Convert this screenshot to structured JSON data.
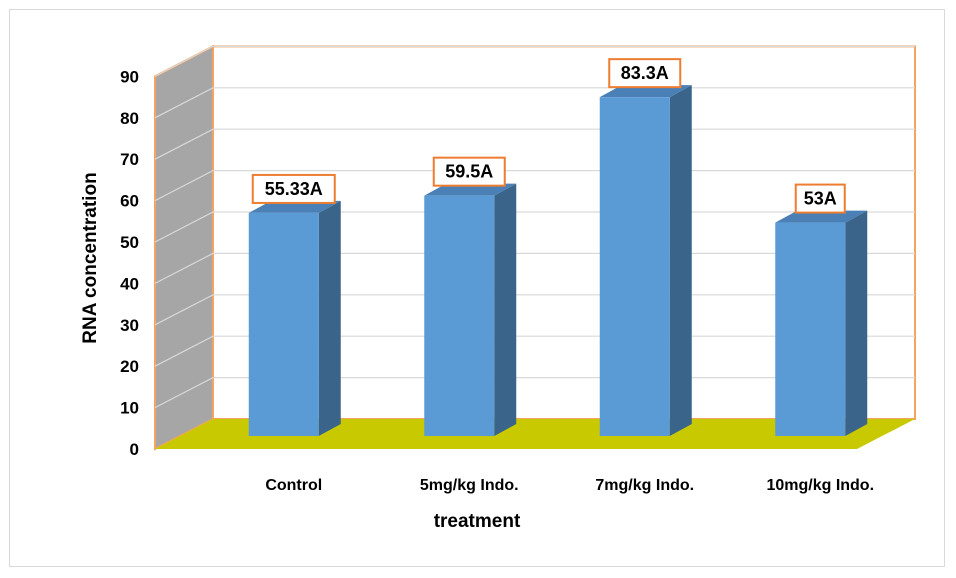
{
  "chart_data": {
    "type": "bar",
    "style": "3d-column",
    "categories": [
      "Control",
      "5mg/kg Indo.",
      "7mg/kg Indo.",
      "10mg/kg Indo."
    ],
    "series": [
      {
        "values": [
          55.33,
          59.5,
          83.3,
          53
        ],
        "color": "#5b9bd5"
      }
    ],
    "data_labels": [
      "55.33A",
      "59.5A",
      "83.3A",
      "53A"
    ],
    "xlabel": "treatment",
    "ylabel": "RNA concentration",
    "ylim": [
      0,
      90
    ],
    "yticks": [
      0,
      10,
      20,
      30,
      40,
      50,
      60,
      70,
      80,
      90
    ],
    "grid": true,
    "legend": "none",
    "colors": {
      "bar_front": "#5b9bd5",
      "bar_side": "#3a6489",
      "bar_top": "#4a80b6",
      "floor": "#c9c900",
      "back_wall": "#ffffff",
      "side_wall": "#a6a6a6",
      "wall_border": "#f4a460",
      "label_border": "#ed7d31",
      "gridline": "#d9d9d9"
    }
  }
}
